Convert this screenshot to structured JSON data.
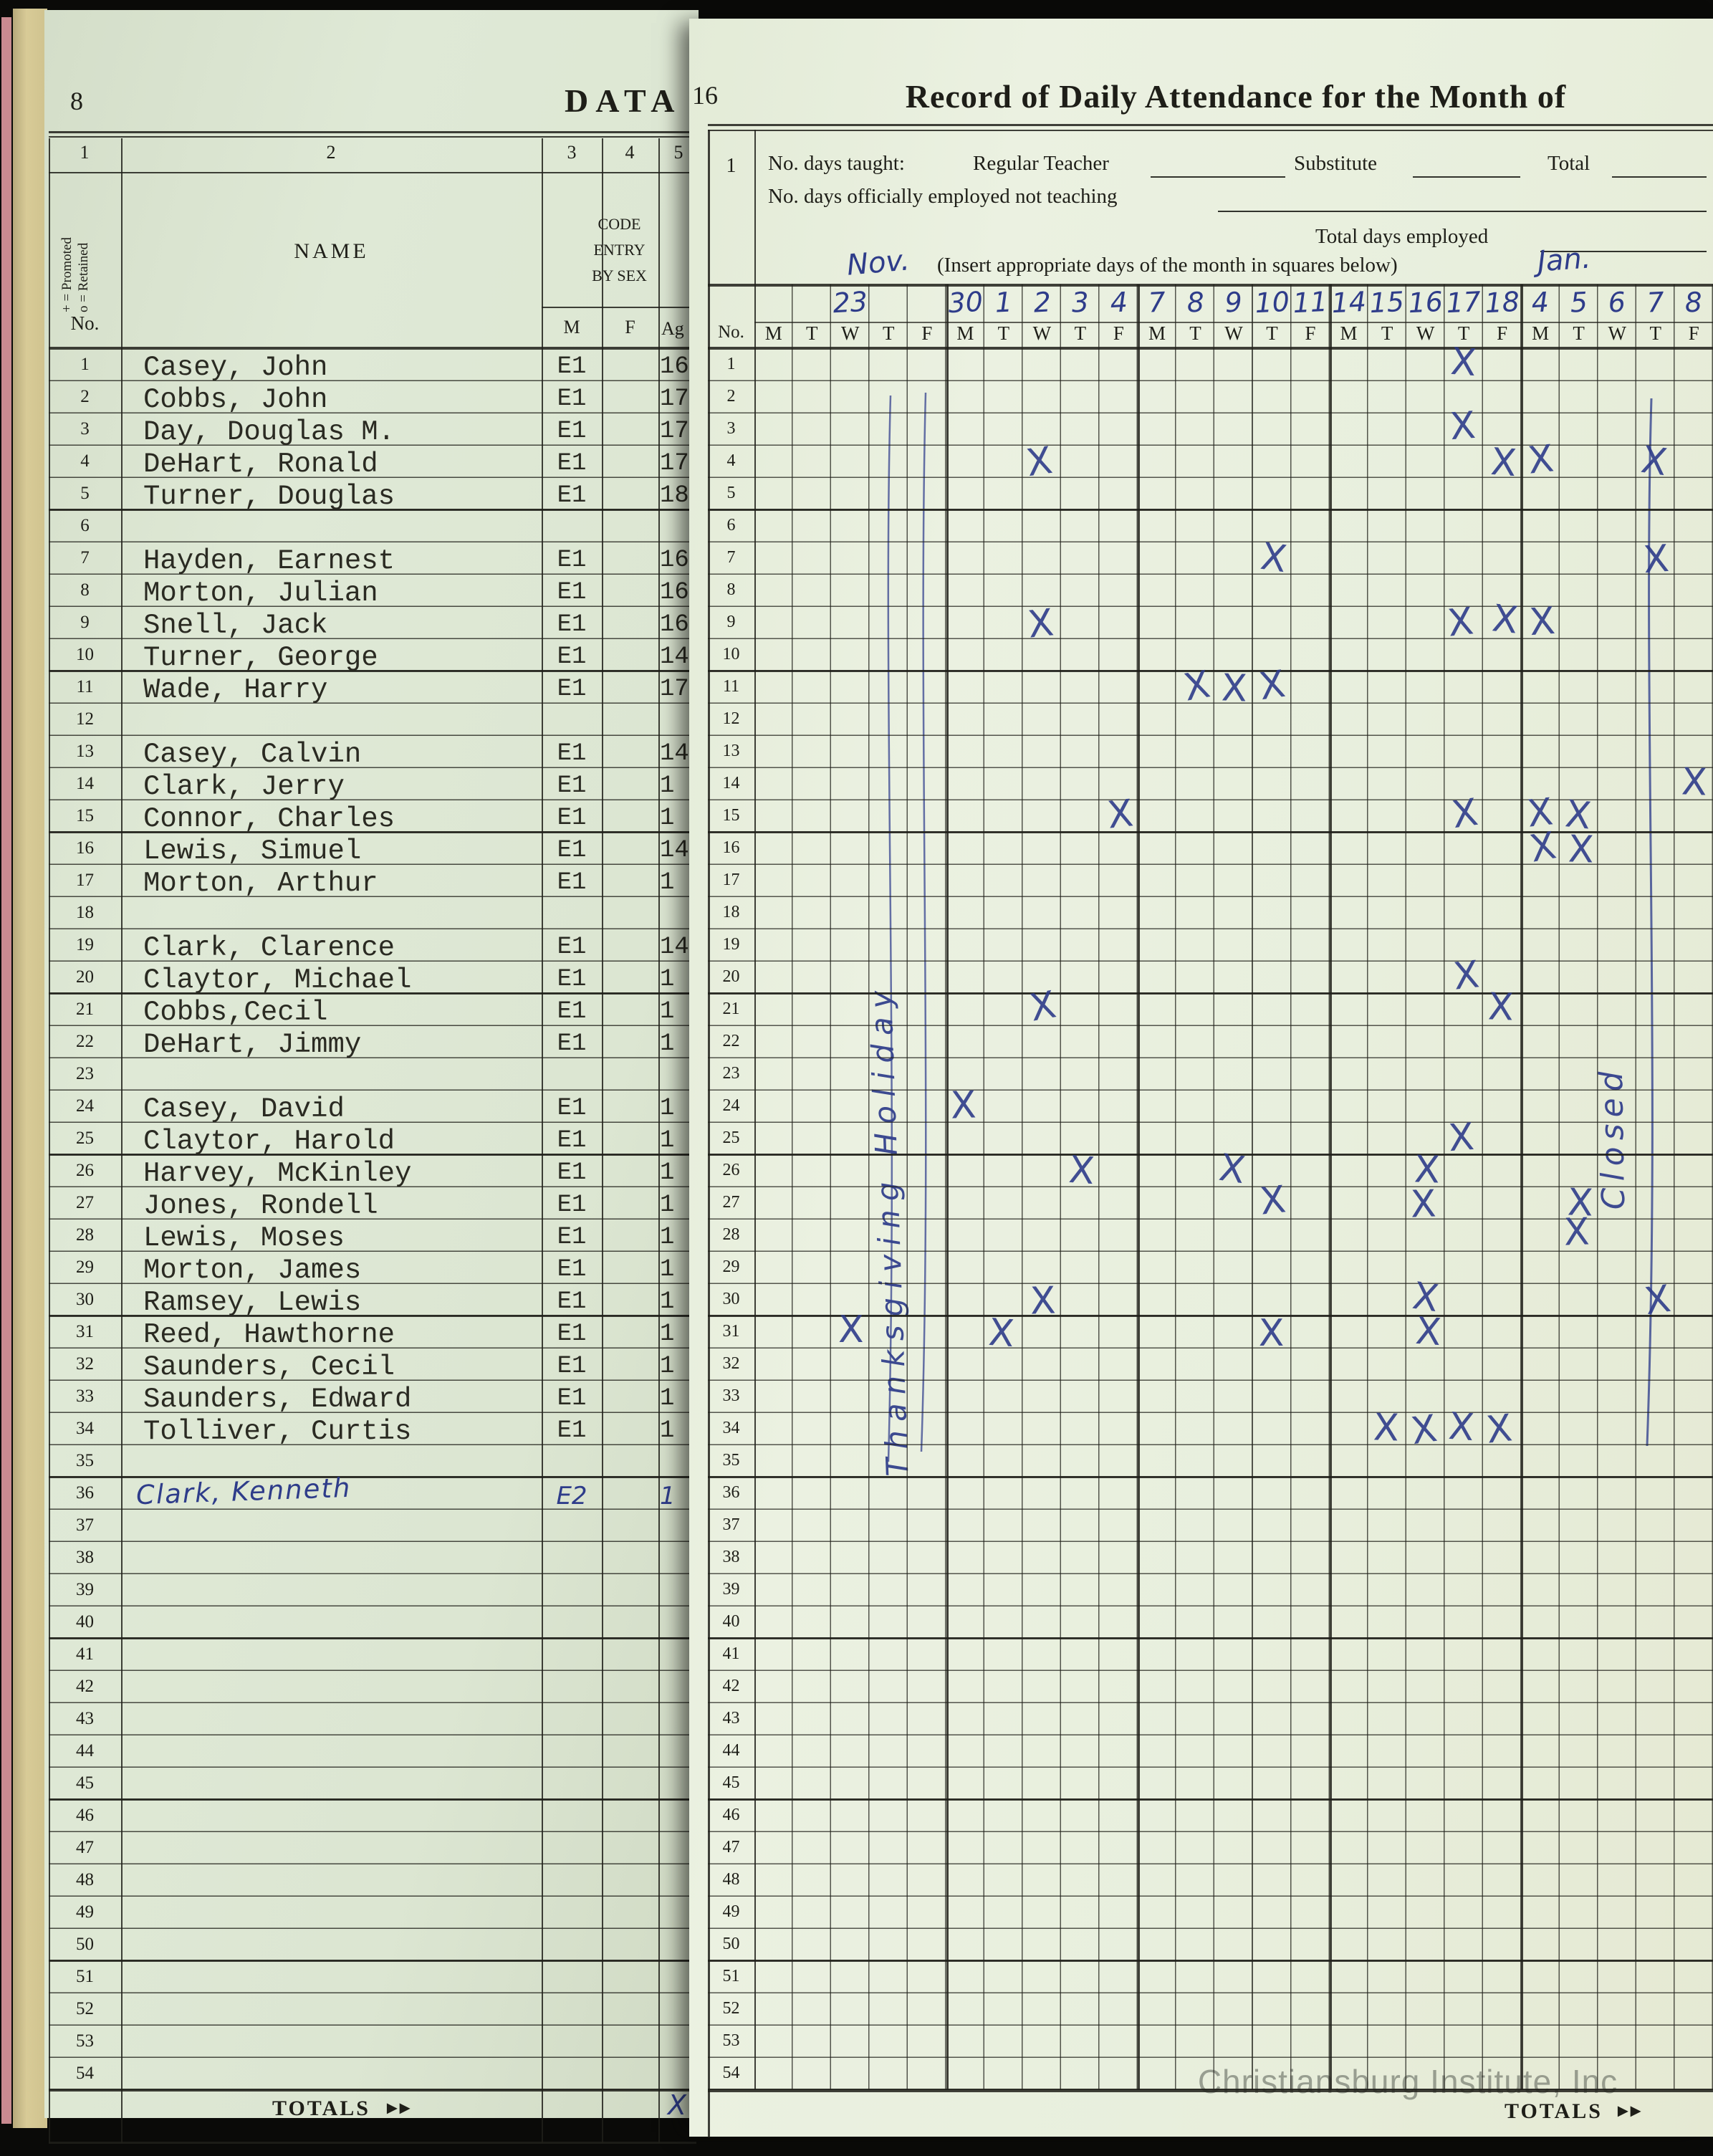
{
  "ink": {
    "blue": "#2e3c8a",
    "black": "#22221c"
  },
  "left_page": {
    "page_number": "8",
    "title_partial": "DATA",
    "header": {
      "col_numbers": [
        "1",
        "2",
        "3",
        "4",
        "5"
      ],
      "promoted_code": "+ = Promoted",
      "retained_code": "o = Retained",
      "no_label": "No.",
      "name_label": "NAME",
      "code_lines": [
        "CODE",
        "ENTRY",
        "BY SEX"
      ],
      "male_label": "M",
      "female_label": "F",
      "age_label": "Ag"
    },
    "rows": [
      {
        "no": "1",
        "name": "Casey, John",
        "code": "E1",
        "age": "16"
      },
      {
        "no": "2",
        "name": "Cobbs, John",
        "code": "E1",
        "age": "17"
      },
      {
        "no": "3",
        "name": "Day, Douglas M.",
        "code": "E1",
        "age": "17"
      },
      {
        "no": "4",
        "name": "DeHart, Ronald",
        "code": "E1",
        "age": "17"
      },
      {
        "no": "5",
        "name": "Turner, Douglas",
        "code": "E1",
        "age": "18"
      },
      {
        "no": "6",
        "name": "",
        "code": "",
        "age": ""
      },
      {
        "no": "7",
        "name": "Hayden, Earnest",
        "code": "E1",
        "age": "16"
      },
      {
        "no": "8",
        "name": "Morton, Julian",
        "code": "E1",
        "age": "16"
      },
      {
        "no": "9",
        "name": "Snell, Jack",
        "code": "E1",
        "age": "16"
      },
      {
        "no": "10",
        "name": "Turner, George",
        "code": "E1",
        "age": "14"
      },
      {
        "no": "11",
        "name": "Wade, Harry",
        "code": "E1",
        "age": "17"
      },
      {
        "no": "12",
        "name": "",
        "code": "",
        "age": ""
      },
      {
        "no": "13",
        "name": "Casey, Calvin",
        "code": "E1",
        "age": "14"
      },
      {
        "no": "14",
        "name": "Clark, Jerry",
        "code": "E1",
        "age": "1"
      },
      {
        "no": "15",
        "name": "Connor, Charles",
        "code": "E1",
        "age": "1"
      },
      {
        "no": "16",
        "name": "Lewis, Simuel",
        "code": "E1",
        "age": "14"
      },
      {
        "no": "17",
        "name": "Morton, Arthur",
        "code": "E1",
        "age": "1"
      },
      {
        "no": "18",
        "name": "",
        "code": "",
        "age": ""
      },
      {
        "no": "19",
        "name": "Clark, Clarence",
        "code": "E1",
        "age": "14"
      },
      {
        "no": "20",
        "name": "Claytor, Michael",
        "code": "E1",
        "age": "1"
      },
      {
        "no": "21",
        "name": "Cobbs,Cecil",
        "code": "E1",
        "age": "1"
      },
      {
        "no": "22",
        "name": "DeHart, Jimmy",
        "code": "E1",
        "age": "1"
      },
      {
        "no": "23",
        "name": "",
        "code": "",
        "age": ""
      },
      {
        "no": "24",
        "name": "Casey, David",
        "code": "E1",
        "age": "1"
      },
      {
        "no": "25",
        "name": "Claytor, Harold",
        "code": "E1",
        "age": "1"
      },
      {
        "no": "26",
        "name": "Harvey, McKinley",
        "code": "E1",
        "age": "1"
      },
      {
        "no": "27",
        "name": "Jones, Rondell",
        "code": "E1",
        "age": "1"
      },
      {
        "no": "28",
        "name": "Lewis, Moses",
        "code": "E1",
        "age": "1"
      },
      {
        "no": "29",
        "name": "Morton, James",
        "code": "E1",
        "age": "1"
      },
      {
        "no": "30",
        "name": "Ramsey, Lewis",
        "code": "E1",
        "age": "1"
      },
      {
        "no": "31",
        "name": "Reed, Hawthorne",
        "code": "E1",
        "age": "1"
      },
      {
        "no": "32",
        "name": "Saunders, Cecil",
        "code": "E1",
        "age": "1"
      },
      {
        "no": "33",
        "name": "Saunders, Edward",
        "code": "E1",
        "age": "1"
      },
      {
        "no": "34",
        "name": "Tolliver, Curtis",
        "code": "E1",
        "age": "1"
      },
      {
        "no": "35",
        "name": "",
        "code": "",
        "age": ""
      },
      {
        "no": "36",
        "name": "Clark, Kenneth",
        "code": "E2",
        "age": "1",
        "hand": true
      },
      {
        "no": "37",
        "name": "",
        "code": "",
        "age": ""
      },
      {
        "no": "38",
        "name": "",
        "code": "",
        "age": ""
      },
      {
        "no": "39",
        "name": "",
        "code": "",
        "age": ""
      },
      {
        "no": "40",
        "name": "",
        "code": "",
        "age": ""
      },
      {
        "no": "41",
        "name": "",
        "code": "",
        "age": ""
      },
      {
        "no": "42",
        "name": "",
        "code": "",
        "age": ""
      },
      {
        "no": "43",
        "name": "",
        "code": "",
        "age": ""
      },
      {
        "no": "44",
        "name": "",
        "code": "",
        "age": ""
      },
      {
        "no": "45",
        "name": "",
        "code": "",
        "age": ""
      },
      {
        "no": "46",
        "name": "",
        "code": "",
        "age": ""
      },
      {
        "no": "47",
        "name": "",
        "code": "",
        "age": ""
      },
      {
        "no": "48",
        "name": "",
        "code": "",
        "age": ""
      },
      {
        "no": "49",
        "name": "",
        "code": "",
        "age": ""
      },
      {
        "no": "50",
        "name": "",
        "code": "",
        "age": ""
      },
      {
        "no": "51",
        "name": "",
        "code": "",
        "age": ""
      },
      {
        "no": "52",
        "name": "",
        "code": "",
        "age": ""
      },
      {
        "no": "53",
        "name": "",
        "code": "",
        "age": ""
      },
      {
        "no": "54",
        "name": "",
        "code": "",
        "age": ""
      }
    ],
    "totals_label": "TOTALS",
    "totals_arrows": "►►",
    "totals_mark": "X"
  },
  "right_page": {
    "page_number": "16",
    "title": "Record of Daily Attendance for the Month of",
    "form": {
      "row_ref": "1",
      "days_taught_label": "No. days taught:",
      "regular_teacher_label": "Regular Teacher",
      "substitute_label": "Substitute",
      "total_label": "Total",
      "not_teaching_label": "No. days officially employed not teaching",
      "total_employed_label": "Total days employed",
      "insert_days_note": "(Insert appropriate days of the month in squares below)",
      "month_start": "Nov.",
      "month_end": "Jan."
    },
    "grid": {
      "no_label": "No.",
      "weekdays": [
        "M",
        "T",
        "W",
        "T",
        "F",
        "M",
        "T",
        "W",
        "T",
        "F",
        "M",
        "T",
        "W",
        "T",
        "F",
        "M",
        "T",
        "W",
        "T",
        "F",
        "M",
        "T",
        "W",
        "T",
        "F"
      ],
      "day_numbers": {
        "2": "23",
        "5": "30",
        "6": "1",
        "7": "2",
        "8": "3",
        "9": "4",
        "10": "7",
        "11": "8",
        "12": "9",
        "13": "10",
        "14": "11",
        "15": "14",
        "16": "15",
        "17": "16",
        "18": "17",
        "19": "18",
        "20": "4",
        "21": "5",
        "22": "6",
        "23": "7",
        "24": "8"
      },
      "row_count": 54,
      "mark_glyph": "X",
      "attendance_marks": [
        {
          "row": 1,
          "cols": [
            18
          ]
        },
        {
          "row": 3,
          "cols": [
            18
          ]
        },
        {
          "row": 4,
          "cols": [
            7,
            19,
            20,
            23
          ]
        },
        {
          "row": 7,
          "cols": [
            13,
            23
          ]
        },
        {
          "row": 9,
          "cols": [
            7,
            18,
            19,
            20
          ]
        },
        {
          "row": 11,
          "cols": [
            11,
            12,
            13
          ]
        },
        {
          "row": 14,
          "cols": [
            24
          ]
        },
        {
          "row": 15,
          "cols": [
            9,
            18,
            20,
            21
          ]
        },
        {
          "row": 16,
          "cols": [
            20,
            21
          ]
        },
        {
          "row": 20,
          "cols": [
            18
          ]
        },
        {
          "row": 21,
          "cols": [
            7,
            19
          ]
        },
        {
          "row": 24,
          "cols": [
            5
          ]
        },
        {
          "row": 25,
          "cols": [
            18
          ]
        },
        {
          "row": 26,
          "cols": [
            8,
            12,
            17
          ]
        },
        {
          "row": 27,
          "cols": [
            13,
            17,
            21
          ]
        },
        {
          "row": 28,
          "cols": [
            21
          ]
        },
        {
          "row": 30,
          "cols": [
            7,
            17,
            23
          ]
        },
        {
          "row": 31,
          "cols": [
            2,
            6,
            13,
            17
          ]
        },
        {
          "row": 34,
          "cols": [
            16,
            17,
            18,
            19
          ]
        }
      ],
      "holiday_note": "Thanksgiving Holiday",
      "closed_note": "Closed"
    },
    "totals_label": "TOTALS",
    "totals_arrows": "►►",
    "watermark": "Christiansburg Institute, Inc"
  }
}
